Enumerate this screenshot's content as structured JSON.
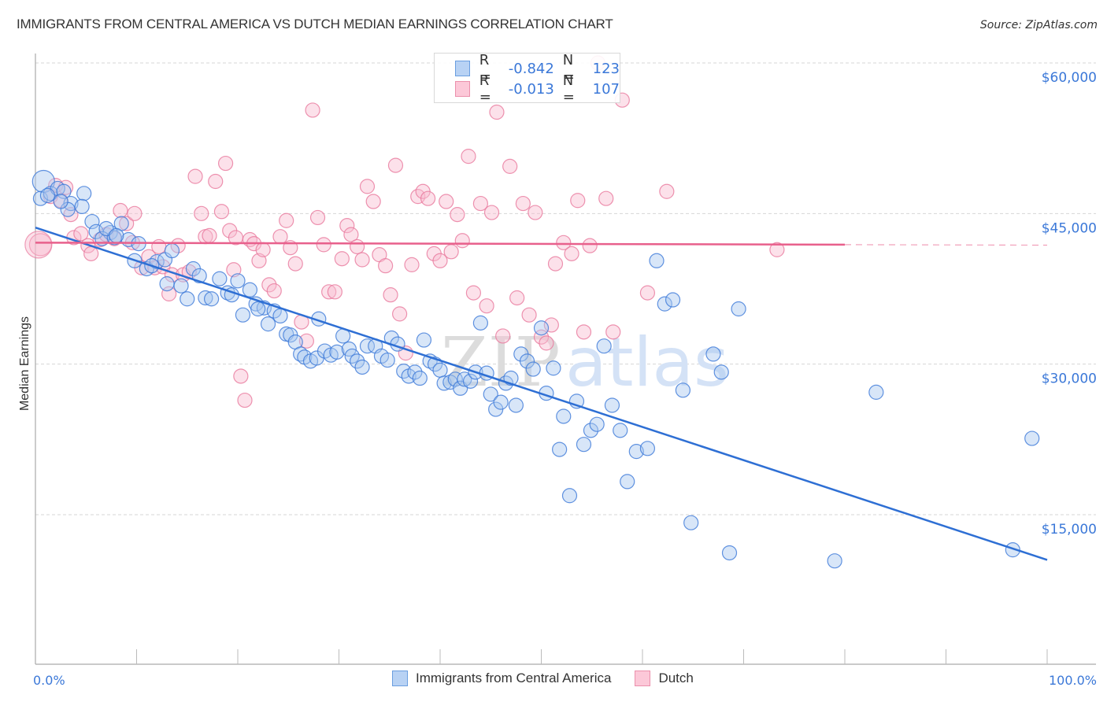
{
  "header": {
    "title": "IMMIGRANTS FROM CENTRAL AMERICA VS DUTCH MEDIAN EARNINGS CORRELATION CHART",
    "source": "Source: ZipAtlas.com"
  },
  "legend": {
    "series": [
      {
        "r_label": "R =",
        "r_value": "-0.842",
        "n_label": "N =",
        "n_value": "123"
      },
      {
        "r_label": "R =",
        "r_value": "-0.013",
        "n_label": "N =",
        "n_value": "107"
      }
    ]
  },
  "bottom_legend": [
    "Immigrants from Central America",
    "Dutch"
  ],
  "watermark": {
    "zip": "ZIP",
    "atlas": "atlas"
  },
  "colors": {
    "blue_fill": "#a8c8f0",
    "blue_stroke": "#3b78d8",
    "blue_line": "#2e6fd4",
    "pink_fill": "#f8bcd0",
    "pink_stroke": "#e8789c",
    "pink_line": "#e8608c",
    "tick_text": "#3b78d8"
  },
  "chart_data": {
    "type": "scatter",
    "title": "IMMIGRANTS FROM CENTRAL AMERICA VS DUTCH MEDIAN EARNINGS CORRELATION CHART",
    "xlabel": "",
    "ylabel": "Median Earnings",
    "xlim": [
      0,
      100
    ],
    "ylim": [
      0,
      62000
    ],
    "x_tick_labels": [
      "0.0%",
      "100.0%"
    ],
    "y_ticks": [
      15000,
      30000,
      45000,
      60000
    ],
    "y_tick_labels": [
      "$15,000",
      "$30,000",
      "$45,000",
      "$60,000"
    ],
    "grid": true,
    "legend_placement": "top-center",
    "series": [
      {
        "name": "Immigrants from Central America",
        "R": -0.842,
        "N": 123,
        "trend": {
          "x": [
            0,
            100
          ],
          "y": [
            43600,
            10500
          ]
        },
        "points": [
          [
            0.8,
            48200
          ],
          [
            0.5,
            46500
          ],
          [
            1.5,
            47000
          ],
          [
            2.2,
            47500
          ],
          [
            2.8,
            47200
          ],
          [
            3.5,
            46000
          ],
          [
            3.2,
            45400
          ],
          [
            4.8,
            47000
          ],
          [
            4.6,
            45700
          ],
          [
            5.6,
            44200
          ],
          [
            6.0,
            43200
          ],
          [
            7.4,
            43100
          ],
          [
            8.5,
            44000
          ],
          [
            6.6,
            42500
          ],
          [
            7.8,
            42600
          ],
          [
            9.2,
            42400
          ],
          [
            10.2,
            42000
          ],
          [
            9.8,
            40300
          ],
          [
            11.0,
            39500
          ],
          [
            12.0,
            40200
          ],
          [
            12.8,
            40400
          ],
          [
            13.5,
            41300
          ],
          [
            13.0,
            38000
          ],
          [
            14.4,
            37800
          ],
          [
            15.0,
            36500
          ],
          [
            15.6,
            39500
          ],
          [
            16.2,
            38800
          ],
          [
            16.8,
            36600
          ],
          [
            17.4,
            36500
          ],
          [
            18.2,
            38500
          ],
          [
            19.0,
            37100
          ],
          [
            19.4,
            36900
          ],
          [
            20.0,
            38300
          ],
          [
            20.5,
            34900
          ],
          [
            21.2,
            37400
          ],
          [
            21.8,
            36000
          ],
          [
            22.6,
            35600
          ],
          [
            23.0,
            34000
          ],
          [
            23.6,
            35300
          ],
          [
            24.2,
            34800
          ],
          [
            24.8,
            33000
          ],
          [
            25.2,
            32900
          ],
          [
            25.7,
            32200
          ],
          [
            26.2,
            31000
          ],
          [
            26.6,
            30700
          ],
          [
            27.2,
            30300
          ],
          [
            27.8,
            30600
          ],
          [
            28.0,
            34500
          ],
          [
            28.6,
            31300
          ],
          [
            29.2,
            30900
          ],
          [
            29.8,
            31200
          ],
          [
            30.4,
            32800
          ],
          [
            31.0,
            31500
          ],
          [
            31.3,
            30800
          ],
          [
            31.8,
            30300
          ],
          [
            32.3,
            29700
          ],
          [
            32.8,
            31800
          ],
          [
            33.6,
            31800
          ],
          [
            34.2,
            30800
          ],
          [
            34.8,
            30400
          ],
          [
            35.2,
            32600
          ],
          [
            35.8,
            32000
          ],
          [
            36.4,
            29300
          ],
          [
            36.9,
            28800
          ],
          [
            37.5,
            29200
          ],
          [
            38.0,
            28600
          ],
          [
            38.4,
            32400
          ],
          [
            39.0,
            30300
          ],
          [
            39.5,
            30000
          ],
          [
            40.0,
            29400
          ],
          [
            40.4,
            28100
          ],
          [
            41.0,
            28200
          ],
          [
            41.5,
            28500
          ],
          [
            42.0,
            27600
          ],
          [
            42.4,
            28500
          ],
          [
            43.0,
            28300
          ],
          [
            43.5,
            29200
          ],
          [
            44.0,
            34100
          ],
          [
            44.6,
            29100
          ],
          [
            45.0,
            27000
          ],
          [
            45.5,
            25500
          ],
          [
            46.0,
            26200
          ],
          [
            46.5,
            28100
          ],
          [
            47.0,
            28600
          ],
          [
            47.5,
            25900
          ],
          [
            48.0,
            31000
          ],
          [
            48.6,
            30300
          ],
          [
            49.2,
            29500
          ],
          [
            50.0,
            33600
          ],
          [
            50.5,
            27100
          ],
          [
            51.2,
            29600
          ],
          [
            51.8,
            21500
          ],
          [
            52.2,
            24800
          ],
          [
            52.8,
            16900
          ],
          [
            53.5,
            26300
          ],
          [
            54.2,
            22000
          ],
          [
            54.9,
            23400
          ],
          [
            55.5,
            24000
          ],
          [
            56.2,
            31800
          ],
          [
            57.0,
            25900
          ],
          [
            57.8,
            23400
          ],
          [
            58.5,
            18300
          ],
          [
            59.4,
            21300
          ],
          [
            60.5,
            21600
          ],
          [
            61.4,
            40300
          ],
          [
            62.2,
            36000
          ],
          [
            63.0,
            36400
          ],
          [
            64.0,
            27400
          ],
          [
            64.8,
            14200
          ],
          [
            67.0,
            31000
          ],
          [
            67.8,
            29200
          ],
          [
            68.6,
            11200
          ],
          [
            69.5,
            35500
          ],
          [
            79.0,
            10400
          ],
          [
            83.1,
            27200
          ],
          [
            96.6,
            11500
          ],
          [
            98.5,
            22600
          ],
          [
            1.2,
            46800
          ],
          [
            2.5,
            46200
          ],
          [
            7.0,
            43500
          ],
          [
            8.0,
            42800
          ],
          [
            11.5,
            39800
          ],
          [
            22.0,
            35500
          ]
        ]
      },
      {
        "name": "Dutch",
        "R": -0.013,
        "N": 107,
        "trend": {
          "x": [
            0,
            80
          ],
          "y": [
            42100,
            41900
          ],
          "dashed_extension_to": 100
        },
        "points": [
          [
            0.5,
            41900
          ],
          [
            1.5,
            46700
          ],
          [
            2.0,
            47800
          ],
          [
            2.5,
            46300
          ],
          [
            3.5,
            44900
          ],
          [
            3.8,
            42600
          ],
          [
            4.5,
            43000
          ],
          [
            5.2,
            41800
          ],
          [
            5.5,
            41000
          ],
          [
            6.4,
            42400
          ],
          [
            7.0,
            42900
          ],
          [
            7.8,
            42500
          ],
          [
            8.4,
            45300
          ],
          [
            9.0,
            44000
          ],
          [
            9.6,
            42100
          ],
          [
            9.8,
            45000
          ],
          [
            10.5,
            39600
          ],
          [
            11.2,
            40700
          ],
          [
            11.8,
            39600
          ],
          [
            12.2,
            41700
          ],
          [
            12.6,
            39700
          ],
          [
            13.2,
            37000
          ],
          [
            13.5,
            38900
          ],
          [
            14.1,
            41800
          ],
          [
            14.6,
            38900
          ],
          [
            15.2,
            39200
          ],
          [
            15.8,
            48700
          ],
          [
            16.4,
            45000
          ],
          [
            16.8,
            42700
          ],
          [
            17.2,
            42800
          ],
          [
            17.8,
            48200
          ],
          [
            18.4,
            45200
          ],
          [
            18.8,
            50000
          ],
          [
            19.2,
            43300
          ],
          [
            19.8,
            42600
          ],
          [
            20.3,
            28800
          ],
          [
            20.7,
            26400
          ],
          [
            21.2,
            42400
          ],
          [
            21.6,
            42000
          ],
          [
            22.1,
            40300
          ],
          [
            22.5,
            41400
          ],
          [
            23.1,
            37900
          ],
          [
            23.6,
            37300
          ],
          [
            24.2,
            42700
          ],
          [
            24.8,
            44300
          ],
          [
            25.2,
            41600
          ],
          [
            25.7,
            40000
          ],
          [
            26.3,
            34200
          ],
          [
            26.8,
            32300
          ],
          [
            27.4,
            55300
          ],
          [
            27.9,
            44600
          ],
          [
            28.5,
            41900
          ],
          [
            29.0,
            37200
          ],
          [
            29.6,
            37200
          ],
          [
            30.3,
            40500
          ],
          [
            30.8,
            43800
          ],
          [
            31.2,
            42900
          ],
          [
            31.8,
            41700
          ],
          [
            32.3,
            40400
          ],
          [
            32.8,
            47700
          ],
          [
            33.4,
            46200
          ],
          [
            34.0,
            40900
          ],
          [
            34.6,
            39800
          ],
          [
            35.1,
            36900
          ],
          [
            35.6,
            49800
          ],
          [
            36.0,
            35000
          ],
          [
            36.6,
            31100
          ],
          [
            37.2,
            39900
          ],
          [
            37.8,
            46700
          ],
          [
            38.3,
            47200
          ],
          [
            38.8,
            46500
          ],
          [
            39.4,
            41000
          ],
          [
            40.0,
            40300
          ],
          [
            40.6,
            46200
          ],
          [
            41.1,
            41200
          ],
          [
            41.7,
            44900
          ],
          [
            42.2,
            42300
          ],
          [
            42.8,
            50700
          ],
          [
            43.3,
            37100
          ],
          [
            44.0,
            46000
          ],
          [
            44.6,
            35800
          ],
          [
            45.1,
            45100
          ],
          [
            45.6,
            55100
          ],
          [
            46.2,
            32800
          ],
          [
            46.9,
            49700
          ],
          [
            47.6,
            36600
          ],
          [
            48.2,
            46000
          ],
          [
            48.8,
            34900
          ],
          [
            49.4,
            45100
          ],
          [
            50.0,
            32700
          ],
          [
            50.5,
            32100
          ],
          [
            51.0,
            33900
          ],
          [
            51.4,
            40000
          ],
          [
            52.2,
            42100
          ],
          [
            53.0,
            41000
          ],
          [
            53.6,
            46300
          ],
          [
            54.2,
            33200
          ],
          [
            54.8,
            41800
          ],
          [
            55.6,
            60000
          ],
          [
            56.4,
            46500
          ],
          [
            57.1,
            33200
          ],
          [
            58.0,
            56300
          ],
          [
            60.5,
            37100
          ],
          [
            62.4,
            47200
          ],
          [
            73.3,
            41400
          ],
          [
            19.6,
            39400
          ],
          [
            3.0,
            47600
          ]
        ]
      }
    ]
  }
}
